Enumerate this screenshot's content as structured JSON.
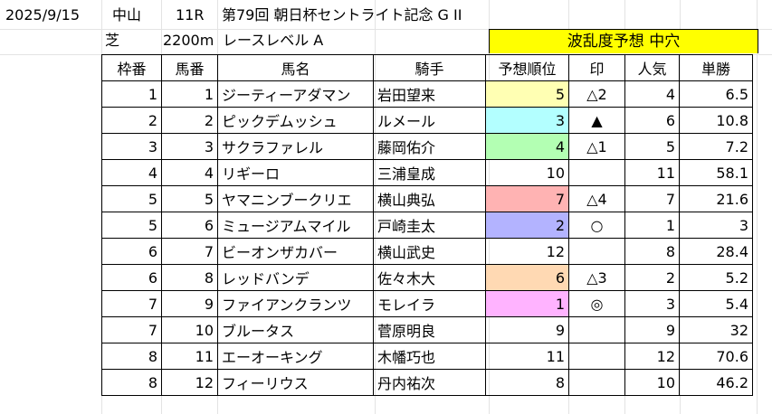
{
  "header": {
    "date": "2025/9/15",
    "venue": "中山",
    "race_no": "11R",
    "race_name": "第79回 朝日杯セントライト記念 G II",
    "surface": "芝",
    "distance": "2200m",
    "level": "レースレベル A",
    "banner": "波乱度予想 中穴"
  },
  "columns": [
    "枠番",
    "馬番",
    "馬名",
    "騎手",
    "予想順位",
    "印",
    "人気",
    "単勝"
  ],
  "rows": [
    {
      "waku": "1",
      "umaban": "1",
      "horse": "ジーティーアダマン",
      "jockey": "岩田望来",
      "rank": "5",
      "mark": "△2",
      "pop": "4",
      "odds": "6.5",
      "rank_color": "#ffffb3"
    },
    {
      "waku": "2",
      "umaban": "2",
      "horse": "ピックデムッシュ",
      "jockey": "ルメール",
      "rank": "3",
      "mark": "▲",
      "pop": "6",
      "odds": "10.8",
      "rank_color": "#b3ffff"
    },
    {
      "waku": "3",
      "umaban": "3",
      "horse": "サクラファレル",
      "jockey": "藤岡佑介",
      "rank": "4",
      "mark": "△1",
      "pop": "5",
      "odds": "7.2",
      "rank_color": "#b3ffb3"
    },
    {
      "waku": "4",
      "umaban": "4",
      "horse": "リギーロ",
      "jockey": "三浦皇成",
      "rank": "10",
      "mark": "",
      "pop": "11",
      "odds": "58.1",
      "rank_color": ""
    },
    {
      "waku": "5",
      "umaban": "5",
      "horse": "ヤマニンブークリエ",
      "jockey": "横山典弘",
      "rank": "7",
      "mark": "△4",
      "pop": "7",
      "odds": "21.6",
      "rank_color": "#ffb3b3"
    },
    {
      "waku": "5",
      "umaban": "6",
      "horse": "ミュージアムマイル",
      "jockey": "戸崎圭太",
      "rank": "2",
      "mark": "○",
      "pop": "1",
      "odds": "3",
      "rank_color": "#b3b3ff"
    },
    {
      "waku": "6",
      "umaban": "7",
      "horse": "ビーオンザカバー",
      "jockey": "横山武史",
      "rank": "12",
      "mark": "",
      "pop": "8",
      "odds": "28.4",
      "rank_color": ""
    },
    {
      "waku": "6",
      "umaban": "8",
      "horse": "レッドバンデ",
      "jockey": "佐々木大",
      "rank": "6",
      "mark": "△3",
      "pop": "2",
      "odds": "5.2",
      "rank_color": "#ffd9b3"
    },
    {
      "waku": "7",
      "umaban": "9",
      "horse": "ファイアンクランツ",
      "jockey": "モレイラ",
      "rank": "1",
      "mark": "◎",
      "pop": "3",
      "odds": "5.4",
      "rank_color": "#ffb3ff"
    },
    {
      "waku": "7",
      "umaban": "10",
      "horse": "ブルータス",
      "jockey": "菅原明良",
      "rank": "9",
      "mark": "",
      "pop": "9",
      "odds": "32",
      "rank_color": ""
    },
    {
      "waku": "8",
      "umaban": "11",
      "horse": "エーオーキング",
      "jockey": "木幡巧也",
      "rank": "11",
      "mark": "",
      "pop": "12",
      "odds": "70.6",
      "rank_color": ""
    },
    {
      "waku": "8",
      "umaban": "12",
      "horse": "フィーリウス",
      "jockey": "丹内祐次",
      "rank": "8",
      "mark": "",
      "pop": "10",
      "odds": "46.2",
      "rank_color": ""
    }
  ]
}
